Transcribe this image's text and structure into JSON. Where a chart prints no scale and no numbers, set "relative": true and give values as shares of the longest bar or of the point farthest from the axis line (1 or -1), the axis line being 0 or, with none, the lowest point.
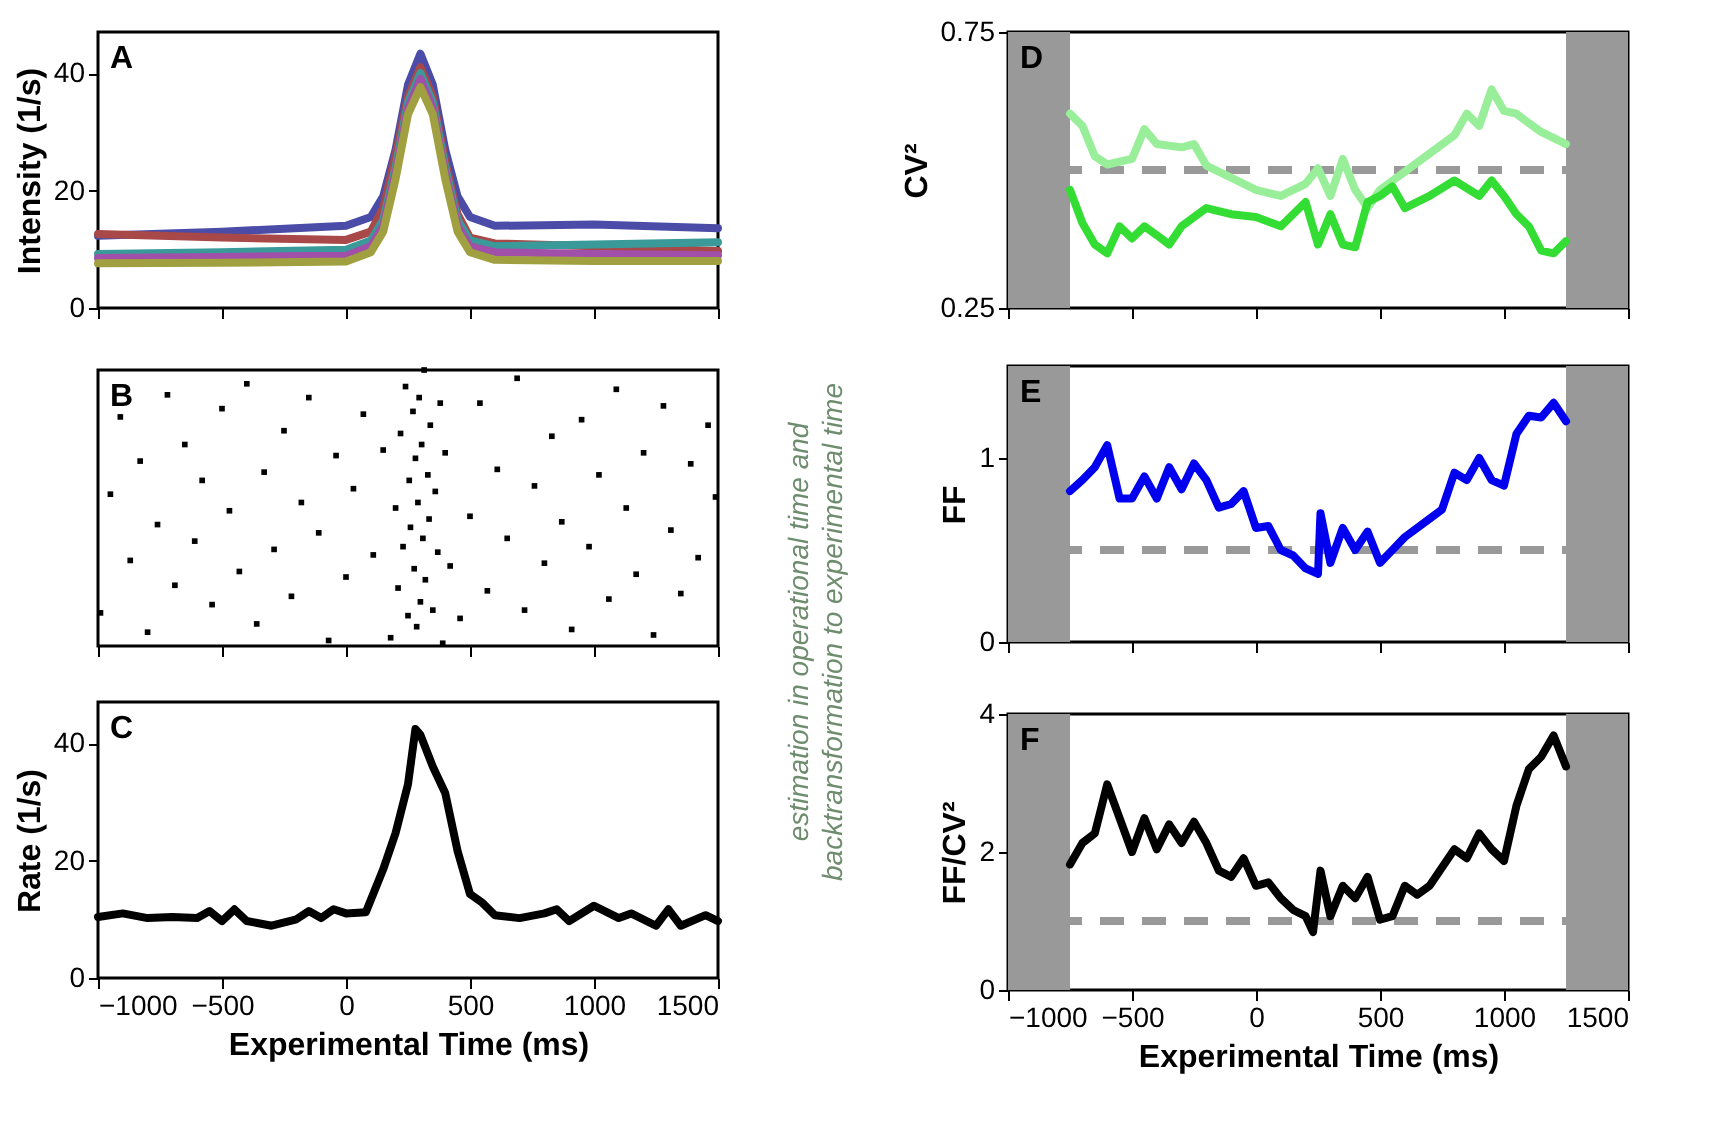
{
  "chart_data": [
    {
      "type": "line",
      "title": "A",
      "ylabel": "Intensity (1/s)",
      "xlim": [
        -1000,
        1500
      ],
      "xticks": [
        -1000,
        -500,
        0,
        500,
        1000,
        1500
      ],
      "ylim": [
        0,
        47
      ],
      "yticks": [
        0,
        20,
        40
      ],
      "tick_labels": "y",
      "x": [
        -1000,
        -500,
        0,
        100,
        150,
        200,
        250,
        300,
        350,
        400,
        450,
        500,
        600,
        1000,
        1500
      ],
      "series": [
        {
          "color": "#4b4ba8",
          "values": [
            12.3,
            13,
            14,
            15.5,
            19,
            27,
            38,
            43.3,
            38,
            27,
            19,
            15.5,
            14,
            14.2,
            13.6
          ]
        },
        {
          "color": "#a84848",
          "values": [
            12.6,
            12,
            11.6,
            13,
            17,
            26,
            36,
            41,
            36,
            25,
            16,
            12,
            11,
            10.5,
            9.7
          ]
        },
        {
          "color": "#3a9a9a",
          "values": [
            9.2,
            9.5,
            9.9,
            11.5,
            15,
            24,
            35,
            40,
            35,
            24,
            15,
            11.5,
            10.5,
            10.8,
            11.2
          ]
        },
        {
          "color": "#a050a8",
          "values": [
            8.5,
            8.7,
            8.9,
            10.5,
            14,
            23,
            34,
            39,
            34,
            23,
            14,
            10.5,
            9.5,
            9.2,
            9.0
          ]
        },
        {
          "color": "#a0a040",
          "values": [
            7.6,
            7.7,
            7.9,
            9.5,
            13,
            22,
            33,
            37.6,
            33,
            22,
            13,
            9.5,
            8.2,
            8,
            8
          ]
        }
      ]
    },
    {
      "type": "scatter",
      "title": "B",
      "relative": true,
      "marker": "square",
      "xlim": [
        -1000,
        1500
      ],
      "xticks": [
        -1000,
        -500,
        0,
        500,
        1000,
        1500
      ],
      "tick_labels": false,
      "series": [
        {
          "color": "#000000",
          "x": [
            -990,
            -950,
            -910,
            -870,
            -830,
            -800,
            -760,
            -720,
            -690,
            -650,
            -610,
            -580,
            -540,
            -500,
            -470,
            -430,
            -400,
            -360,
            -330,
            -290,
            -250,
            -220,
            -180,
            -150,
            -110,
            -70,
            -40,
            0,
            30,
            70,
            110,
            150,
            460,
            500,
            540,
            570,
            610,
            650,
            690,
            720,
            760,
            800,
            830,
            870,
            910,
            950,
            980,
            1020,
            1060,
            1090,
            1130,
            1170,
            1200,
            1240,
            1280,
            1310,
            1350,
            1390,
            1420,
            1460,
            1490,
            180,
            200,
            210,
            220,
            230,
            240,
            250,
            255,
            260,
            270,
            275,
            280,
            285,
            290,
            295,
            300,
            305,
            310,
            315,
            320,
            330,
            335,
            340,
            350,
            360,
            370,
            380,
            390,
            400,
            420
          ],
          "values": [
            0.12,
            0.55,
            0.83,
            0.31,
            0.67,
            0.05,
            0.44,
            0.91,
            0.22,
            0.73,
            0.38,
            0.6,
            0.15,
            0.86,
            0.49,
            0.27,
            0.95,
            0.08,
            0.63,
            0.35,
            0.78,
            0.18,
            0.52,
            0.9,
            0.41,
            0.02,
            0.69,
            0.25,
            0.57,
            0.84,
            0.33,
            0.71,
            0.1,
            0.47,
            0.88,
            0.2,
            0.64,
            0.39,
            0.97,
            0.13,
            0.58,
            0.3,
            0.76,
            0.45,
            0.06,
            0.82,
            0.36,
            0.62,
            0.17,
            0.93,
            0.5,
            0.26,
            0.7,
            0.04,
            0.87,
            0.42,
            0.19,
            0.66,
            0.32,
            0.8,
            0.54,
            0.03,
            0.5,
            0.21,
            0.77,
            0.36,
            0.94,
            0.11,
            0.6,
            0.43,
            0.85,
            0.28,
            0.68,
            0.07,
            0.52,
            0.9,
            0.16,
            0.73,
            0.39,
            1,
            0.24,
            0.62,
            0.46,
            0.8,
            0.13,
            0.56,
            0.34,
            0.88,
            0.01,
            0.7,
            0.29
          ]
        }
      ]
    },
    {
      "type": "line",
      "title": "C",
      "xlabel": "Experimental Time (ms)",
      "ylabel": "Rate (1/s)",
      "xlim": [
        -1000,
        1500
      ],
      "xticks": [
        -1000,
        -500,
        0,
        500,
        1000,
        1500
      ],
      "ylim": [
        0,
        47
      ],
      "yticks": [
        0,
        20,
        40
      ],
      "x": [
        -1000,
        -900,
        -800,
        -700,
        -600,
        -550,
        -500,
        -450,
        -400,
        -300,
        -200,
        -150,
        -100,
        -50,
        0,
        80,
        150,
        200,
        250,
        280,
        300,
        350,
        400,
        450,
        500,
        550,
        600,
        700,
        800,
        850,
        900,
        1000,
        1100,
        1150,
        1250,
        1300,
        1350,
        1450,
        1500
      ],
      "series": [
        {
          "color": "#000000",
          "values": [
            10.4,
            11,
            10.2,
            10.4,
            10.2,
            11.4,
            9.7,
            11.7,
            9.7,
            8.9,
            10,
            11.4,
            10.2,
            11.7,
            11,
            11.2,
            18.5,
            24.7,
            33,
            42.4,
            41.4,
            36,
            31.5,
            21.6,
            14.3,
            12.8,
            10.7,
            10.2,
            11,
            11.7,
            9.7,
            12.3,
            10.2,
            11,
            8.9,
            11.7,
            8.9,
            10.7,
            9.7
          ]
        }
      ]
    },
    {
      "type": "other",
      "annotations": [
        "estimation in operational time and",
        "backtransformation to experimental time"
      ]
    },
    {
      "type": "line",
      "title": "D",
      "ylabel": "CV²",
      "xlim": [
        -1000,
        1500
      ],
      "xticks": [
        -1000,
        -500,
        0,
        500,
        1000,
        1500
      ],
      "ylim": [
        0.25,
        0.75
      ],
      "yticks": [
        0.25,
        0.75
      ],
      "tick_labels": "y",
      "ref_lines": [
        {
          "axis": "y",
          "value": 0.5,
          "color": "#999999",
          "line_style": "dashed"
        }
      ],
      "bands": [
        {
          "axis": "x",
          "from": -1000,
          "to": -750,
          "color": "#999999"
        },
        {
          "axis": "x",
          "from": 1250,
          "to": 1500,
          "color": "#999999"
        }
      ],
      "series": [
        {
          "color": "#99ee99",
          "x": [
            -750,
            -700,
            -650,
            -600,
            -500,
            -450,
            -400,
            -300,
            -250,
            -200,
            -100,
            0,
            100,
            200,
            250,
            300,
            350,
            400,
            450,
            500,
            600,
            700,
            800,
            850,
            900,
            950,
            1000,
            1050,
            1100,
            1150,
            1250
          ],
          "values": [
            0.602,
            0.58,
            0.525,
            0.51,
            0.52,
            0.574,
            0.547,
            0.541,
            0.547,
            0.508,
            0.486,
            0.464,
            0.453,
            0.475,
            0.503,
            0.453,
            0.52,
            0.464,
            0.431,
            0.464,
            0.497,
            0.53,
            0.563,
            0.602,
            0.58,
            0.646,
            0.607,
            0.602,
            0.585,
            0.569,
            0.547
          ]
        },
        {
          "color": "#33dd33",
          "x": [
            -750,
            -700,
            -650,
            -600,
            -550,
            -500,
            -450,
            -400,
            -350,
            -300,
            -200,
            -100,
            0,
            100,
            200,
            250,
            300,
            350,
            400,
            450,
            500,
            550,
            600,
            700,
            800,
            900,
            950,
            1000,
            1050,
            1100,
            1150,
            1200,
            1250
          ],
          "values": [
            0.464,
            0.404,
            0.365,
            0.349,
            0.398,
            0.376,
            0.398,
            0.382,
            0.365,
            0.398,
            0.431,
            0.42,
            0.415,
            0.398,
            0.442,
            0.365,
            0.42,
            0.365,
            0.36,
            0.442,
            0.453,
            0.47,
            0.431,
            0.453,
            0.481,
            0.453,
            0.481,
            0.453,
            0.42,
            0.398,
            0.354,
            0.349,
            0.371
          ]
        }
      ]
    },
    {
      "type": "line",
      "title": "E",
      "ylabel": "FF",
      "xlim": [
        -1000,
        1500
      ],
      "xticks": [
        -1000,
        -500,
        0,
        500,
        1000,
        1500
      ],
      "ylim": [
        0,
        1.5
      ],
      "yticks": [
        0,
        1
      ],
      "tick_labels": "y",
      "ref_lines": [
        {
          "axis": "y",
          "value": 0.5,
          "color": "#999999",
          "line_style": "dashed"
        }
      ],
      "bands": [
        {
          "axis": "x",
          "from": -1000,
          "to": -750,
          "color": "#999999"
        },
        {
          "axis": "x",
          "from": 1250,
          "to": 1500,
          "color": "#999999"
        }
      ],
      "series": [
        {
          "color": "#0000ee",
          "x": [
            -750,
            -700,
            -650,
            -600,
            -550,
            -500,
            -450,
            -400,
            -350,
            -300,
            -250,
            -200,
            -150,
            -100,
            -50,
            0,
            50,
            100,
            150,
            200,
            250,
            260,
            300,
            350,
            400,
            450,
            500,
            550,
            600,
            700,
            750,
            800,
            850,
            900,
            950,
            1000,
            1050,
            1100,
            1150,
            1200,
            1250
          ],
          "values": [
            0.82,
            0.88,
            0.95,
            1.07,
            0.78,
            0.78,
            0.9,
            0.78,
            0.95,
            0.83,
            0.97,
            0.88,
            0.73,
            0.75,
            0.82,
            0.62,
            0.63,
            0.5,
            0.47,
            0.4,
            0.37,
            0.7,
            0.43,
            0.62,
            0.5,
            0.6,
            0.43,
            0.5,
            0.57,
            0.67,
            0.72,
            0.92,
            0.88,
            1.0,
            0.88,
            0.85,
            1.13,
            1.23,
            1.22,
            1.3,
            1.2
          ]
        }
      ]
    },
    {
      "type": "line",
      "title": "F",
      "xlabel": "Experimental Time (ms)",
      "ylabel": "FF/CV²",
      "xlim": [
        -1000,
        1500
      ],
      "xticks": [
        -1000,
        -500,
        0,
        500,
        1000,
        1500
      ],
      "ylim": [
        0,
        4
      ],
      "yticks": [
        0,
        2,
        4
      ],
      "ref_lines": [
        {
          "axis": "y",
          "value": 1,
          "color": "#999999",
          "line_style": "dashed"
        }
      ],
      "bands": [
        {
          "axis": "x",
          "from": -1000,
          "to": -750,
          "color": "#999999"
        },
        {
          "axis": "x",
          "from": 1250,
          "to": 1500,
          "color": "#999999"
        }
      ],
      "series": [
        {
          "color": "#000000",
          "x": [
            -750,
            -700,
            -650,
            -600,
            -550,
            -500,
            -450,
            -400,
            -350,
            -300,
            -250,
            -200,
            -150,
            -100,
            -50,
            0,
            50,
            100,
            150,
            200,
            230,
            260,
            300,
            350,
            400,
            450,
            500,
            550,
            600,
            650,
            700,
            800,
            850,
            900,
            950,
            1000,
            1050,
            1100,
            1150,
            1200,
            1250
          ],
          "values": [
            1.82,
            2.13,
            2.27,
            2.98,
            2.49,
            2.0,
            2.49,
            2.04,
            2.4,
            2.13,
            2.44,
            2.13,
            1.73,
            1.64,
            1.91,
            1.51,
            1.56,
            1.33,
            1.16,
            1.07,
            0.84,
            1.73,
            1.07,
            1.51,
            1.33,
            1.64,
            1.02,
            1.07,
            1.51,
            1.38,
            1.51,
            2.04,
            1.91,
            2.27,
            2.04,
            1.87,
            2.67,
            3.2,
            3.38,
            3.69,
            3.24
          ]
        }
      ]
    }
  ]
}
